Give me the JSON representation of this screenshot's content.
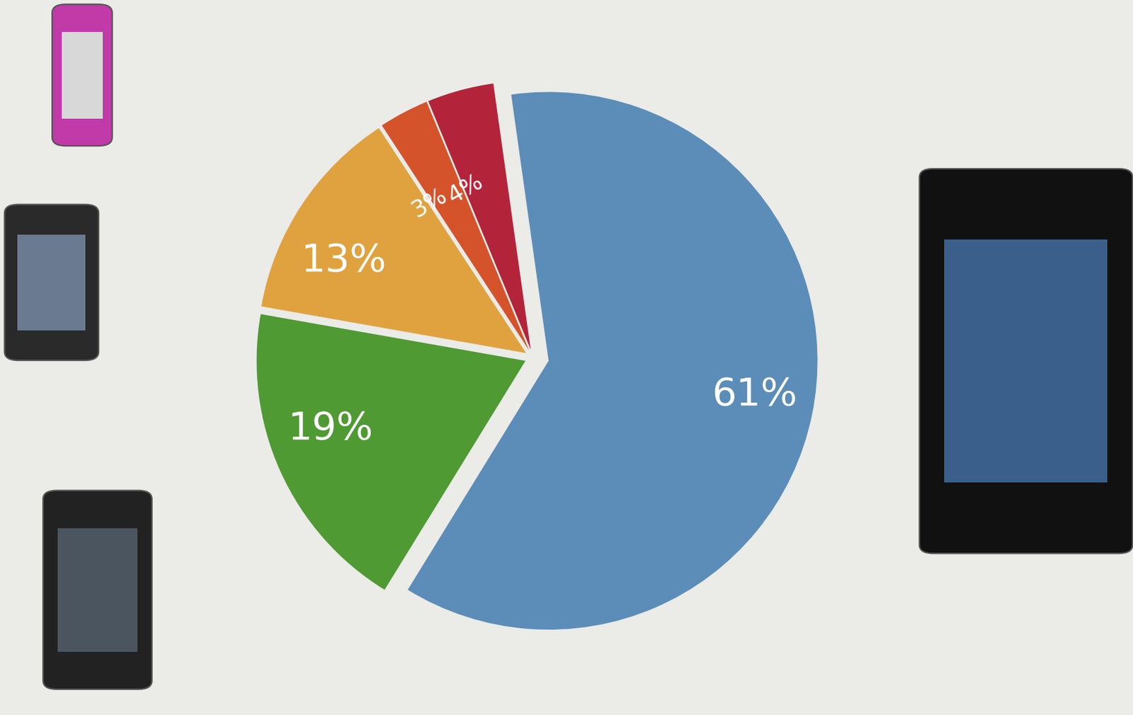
{
  "chart_data": {
    "type": "pie",
    "values": [
      61,
      19,
      13,
      3,
      4
    ],
    "value_labels": [
      "61%",
      "19%",
      "13%",
      "3%",
      "4%"
    ],
    "colors": [
      "#5b8db8",
      "#4f9a33",
      "#e0a23e",
      "#d4532a",
      "#b3243a"
    ],
    "data_labels": true
  }
}
